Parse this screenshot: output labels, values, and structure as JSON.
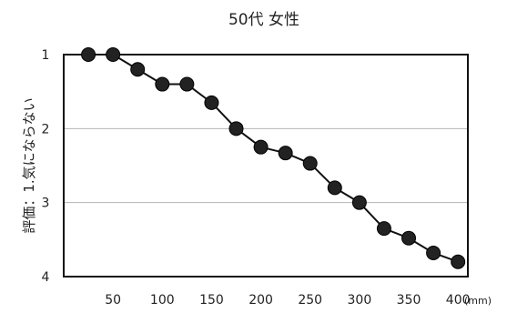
{
  "chart_data": {
    "type": "line",
    "title": "50代 女性",
    "ylabel": "評価：1.気にならない",
    "xlabel": "",
    "x_unit": "(mm)",
    "x": [
      25,
      50,
      75,
      100,
      125,
      150,
      175,
      200,
      225,
      250,
      275,
      300,
      325,
      350,
      375,
      400
    ],
    "xticks": [
      50,
      100,
      150,
      200,
      250,
      300,
      350,
      400
    ],
    "xlim": [
      0,
      410
    ],
    "yticks": [
      1,
      2,
      3,
      4
    ],
    "ylim": [
      1,
      4
    ],
    "y_inverted": true,
    "grid": "horizontal",
    "series": [
      {
        "name": "",
        "values": [
          1.0,
          1.0,
          1.2,
          1.4,
          1.4,
          1.65,
          2.0,
          2.25,
          2.33,
          2.47,
          2.8,
          3.0,
          3.35,
          3.48,
          3.68,
          3.8
        ]
      }
    ],
    "colors": {
      "line": "#111111",
      "marker": "#222222",
      "grid": "#b5b5b5",
      "axis": "#111111"
    }
  }
}
